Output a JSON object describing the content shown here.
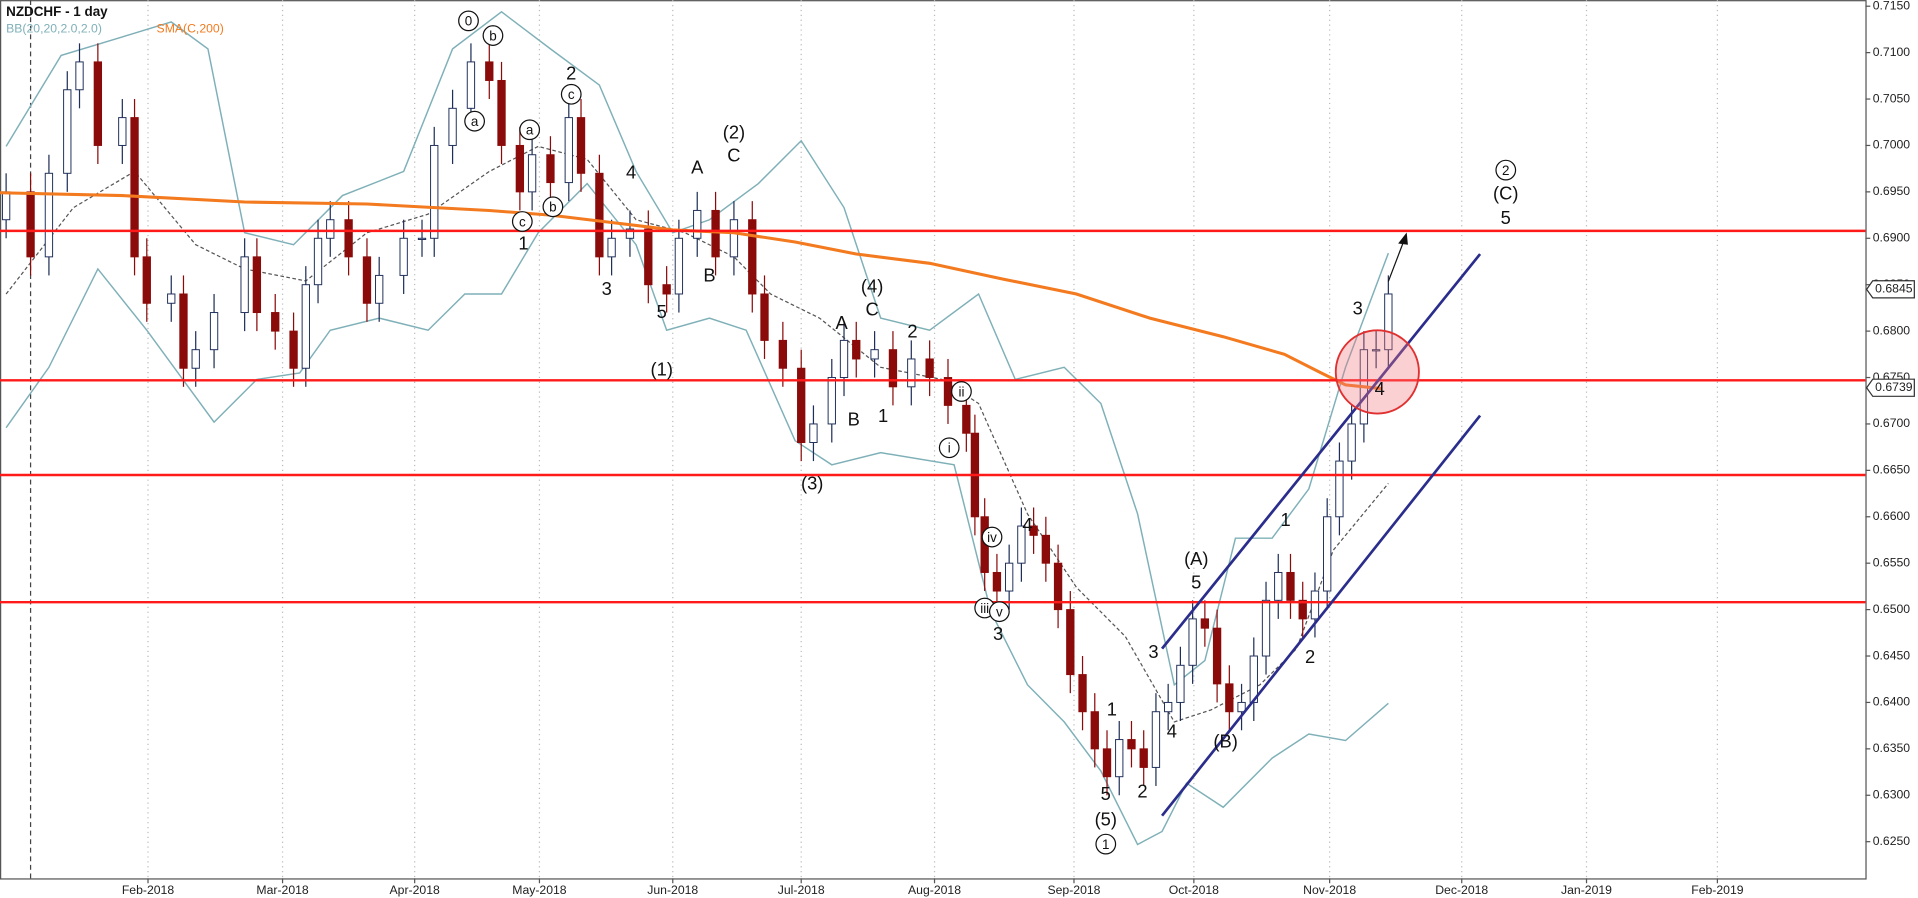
{
  "chart_data": {
    "type": "candlestick",
    "title": "NZDCHF - 1 day",
    "x": [
      1,
      5,
      8,
      11,
      13,
      16,
      20,
      22,
      24,
      28,
      30,
      32,
      35,
      40,
      42,
      45,
      48,
      50,
      52,
      54,
      57,
      60,
      62,
      66,
      69,
      71,
      74,
      77,
      80,
      82,
      85,
      87,
      90,
      93,
      95,
      98,
      100,
      103,
      106,
      109,
      111,
      114,
      117,
      120,
      123,
      125,
      128,
      131,
      133,
      136,
      138,
      140,
      143,
      146,
      149,
      152,
      155,
      158,
      159.4,
      161,
      163,
      165,
      167,
      169,
      171,
      173,
      175,
      177,
      179,
      181,
      183,
      185,
      187,
      189,
      191,
      193,
      195,
      197,
      199,
      201,
      203,
      205,
      207,
      209,
      211,
      213,
      215,
      217,
      219,
      221,
      223,
      225,
      227
    ],
    "open": [
      0.692,
      0.695,
      0.688,
      0.697,
      0.706,
      0.709,
      0.7,
      0.703,
      0.688,
      0.683,
      0.684,
      0.676,
      0.678,
      0.682,
      0.688,
      0.682,
      0.68,
      0.676,
      0.685,
      0.69,
      0.692,
      0.688,
      0.683,
      0.686,
      0.69,
      0.69,
      0.7,
      0.704,
      0.709,
      0.707,
      0.7,
      0.695,
      0.699,
      0.696,
      0.703,
      0.697,
      0.688,
      0.69,
      0.691,
      0.685,
      0.684,
      0.69,
      0.693,
      0.688,
      0.692,
      0.684,
      0.679,
      0.676,
      0.668,
      0.67,
      0.675,
      0.679,
      0.677,
      0.678,
      0.674,
      0.677,
      0.675,
      0.672,
      0.669,
      0.66,
      0.654,
      0.652,
      0.655,
      0.659,
      0.658,
      0.655,
      0.65,
      0.643,
      0.639,
      0.635,
      0.632,
      0.636,
      0.635,
      0.633,
      0.639,
      0.64,
      0.644,
      0.649,
      0.648,
      0.642,
      0.639,
      0.64,
      0.645,
      0.651,
      0.654,
      0.651,
      0.649,
      0.652,
      0.66,
      0.666,
      0.67,
      0.678,
      0.678
    ],
    "high": [
      0.697,
      0.697,
      0.699,
      0.708,
      0.711,
      0.711,
      0.705,
      0.705,
      0.69,
      0.686,
      0.686,
      0.68,
      0.684,
      0.69,
      0.69,
      0.684,
      0.682,
      0.687,
      0.692,
      0.694,
      0.694,
      0.69,
      0.688,
      0.692,
      0.692,
      0.702,
      0.706,
      0.711,
      0.711,
      0.709,
      0.702,
      0.701,
      0.701,
      0.705,
      0.705,
      0.699,
      0.692,
      0.693,
      0.693,
      0.687,
      0.692,
      0.695,
      0.695,
      0.694,
      0.694,
      0.686,
      0.681,
      0.678,
      0.672,
      0.677,
      0.681,
      0.681,
      0.68,
      0.68,
      0.679,
      0.679,
      0.677,
      0.674,
      0.671,
      0.662,
      0.656,
      0.657,
      0.661,
      0.661,
      0.66,
      0.657,
      0.652,
      0.645,
      0.641,
      0.637,
      0.638,
      0.638,
      0.637,
      0.641,
      0.642,
      0.646,
      0.651,
      0.651,
      0.65,
      0.644,
      0.642,
      0.647,
      0.653,
      0.656,
      0.656,
      0.653,
      0.654,
      0.662,
      0.668,
      0.672,
      0.68,
      0.68,
      0.686
    ],
    "low": [
      0.69,
      0.686,
      0.686,
      0.695,
      0.704,
      0.698,
      0.698,
      0.686,
      0.681,
      0.681,
      0.674,
      0.674,
      0.676,
      0.68,
      0.68,
      0.678,
      0.674,
      0.674,
      0.683,
      0.688,
      0.686,
      0.681,
      0.681,
      0.684,
      0.688,
      0.688,
      0.698,
      0.702,
      0.705,
      0.698,
      0.693,
      0.693,
      0.694,
      0.694,
      0.695,
      0.686,
      0.686,
      0.688,
      0.683,
      0.682,
      0.682,
      0.688,
      0.686,
      0.686,
      0.682,
      0.677,
      0.674,
      0.666,
      0.666,
      0.668,
      0.673,
      0.675,
      0.675,
      0.672,
      0.672,
      0.673,
      0.67,
      0.667,
      0.658,
      0.652,
      0.65,
      0.65,
      0.653,
      0.656,
      0.653,
      0.648,
      0.641,
      0.637,
      0.633,
      0.63,
      0.63,
      0.633,
      0.631,
      0.631,
      0.637,
      0.638,
      0.642,
      0.646,
      0.64,
      0.637,
      0.637,
      0.638,
      0.643,
      0.649,
      0.649,
      0.647,
      0.647,
      0.65,
      0.658,
      0.664,
      0.668,
      0.676,
      0.676
    ],
    "close": [
      0.695,
      0.688,
      0.697,
      0.706,
      0.709,
      0.7,
      0.703,
      0.688,
      0.683,
      0.684,
      0.676,
      0.678,
      0.682,
      0.688,
      0.682,
      0.68,
      0.676,
      0.685,
      0.69,
      0.692,
      0.688,
      0.683,
      0.686,
      0.69,
      0.69,
      0.7,
      0.704,
      0.709,
      0.707,
      0.7,
      0.695,
      0.699,
      0.696,
      0.703,
      0.697,
      0.688,
      0.69,
      0.691,
      0.685,
      0.684,
      0.69,
      0.693,
      0.688,
      0.692,
      0.684,
      0.679,
      0.676,
      0.668,
      0.67,
      0.675,
      0.679,
      0.677,
      0.678,
      0.674,
      0.677,
      0.675,
      0.672,
      0.669,
      0.66,
      0.654,
      0.652,
      0.655,
      0.659,
      0.658,
      0.655,
      0.65,
      0.643,
      0.639,
      0.635,
      0.632,
      0.636,
      0.635,
      0.633,
      0.639,
      0.64,
      0.644,
      0.649,
      0.648,
      0.642,
      0.639,
      0.64,
      0.645,
      0.651,
      0.654,
      0.651,
      0.649,
      0.652,
      0.66,
      0.666,
      0.67,
      0.678,
      0.678,
      0.684
    ],
    "up_color": "#ffffff",
    "down_color": "#8b0a0a",
    "outline_color": "#1f2f5a",
    "indicators": [
      {
        "name": "BB(20,20,2.0,2.0)",
        "color": "#7fb0b8",
        "upper": {
          "x": [
            1,
            10,
            20,
            28,
            34,
            40,
            48,
            56,
            66,
            74,
            82,
            90,
            98,
            104,
            110,
            116,
            124,
            131,
            138,
            144,
            152,
            160,
            166,
            174,
            180,
            186,
            192,
            197,
            202,
            208,
            214,
            220,
            227
          ],
          "values": [
            0.6999,
            0.7097,
            0.7117,
            0.7133,
            0.7104,
            0.6906,
            0.6893,
            0.6946,
            0.6972,
            0.7104,
            0.7144,
            0.7104,
            0.7065,
            0.6972,
            0.6906,
            0.692,
            0.6959,
            0.7005,
            0.6933,
            0.6814,
            0.6801,
            0.684,
            0.6748,
            0.6761,
            0.6722,
            0.6603,
            0.6419,
            0.6445,
            0.6577,
            0.6577,
            0.663,
            0.6761,
            0.6884
          ]
        },
        "middle": {
          "x": [
            1,
            12,
            22,
            32,
            40,
            50,
            60,
            70,
            80,
            88,
            96,
            104,
            112,
            120,
            126,
            134,
            144,
            154,
            160,
            168,
            176,
            184,
            192,
            198,
            206,
            212,
            218,
            227
          ],
          "values": [
            0.684,
            0.6933,
            0.6972,
            0.6893,
            0.6867,
            0.6854,
            0.6906,
            0.6926,
            0.6972,
            0.6999,
            0.6985,
            0.692,
            0.6906,
            0.688,
            0.684,
            0.6814,
            0.6761,
            0.6748,
            0.6722,
            0.6603,
            0.6524,
            0.6471,
            0.6379,
            0.6392,
            0.6419,
            0.6458,
            0.6564,
            0.6636
          ]
        },
        "lower": {
          "x": [
            1,
            8,
            16,
            24,
            35,
            42,
            49,
            54,
            62,
            70,
            76,
            82,
            88,
            96,
            104,
            109,
            116,
            122,
            130,
            136,
            144,
            156,
            162,
            168,
            174,
            180,
            186,
            190,
            194,
            200,
            208,
            214,
            220,
            227
          ],
          "values": [
            0.6696,
            0.6761,
            0.6867,
            0.6801,
            0.6702,
            0.6748,
            0.6755,
            0.6801,
            0.6814,
            0.6801,
            0.684,
            0.684,
            0.6906,
            0.6959,
            0.6893,
            0.6801,
            0.6814,
            0.6801,
            0.6682,
            0.6656,
            0.6669,
            0.6656,
            0.6498,
            0.6419,
            0.6379,
            0.6326,
            0.6247,
            0.6261,
            0.6313,
            0.6287,
            0.634,
            0.6366,
            0.6359,
            0.6399
          ]
        }
      },
      {
        "name": "SMA(C,200)",
        "color": "#f37a1f",
        "x": [
          0,
          20,
          40,
          60,
          80,
          90,
          100,
          110,
          120,
          130,
          140,
          152,
          164,
          176,
          188,
          200,
          210,
          216,
          220,
          226
        ],
        "values": [
          0.6949,
          0.6946,
          0.6939,
          0.6937,
          0.693,
          0.6925,
          0.6917,
          0.6909,
          0.6906,
          0.6896,
          0.6883,
          0.6873,
          0.6856,
          0.684,
          0.6814,
          0.6794,
          0.6775,
          0.6755,
          0.6742,
          0.6738
        ]
      }
    ],
    "levels": [
      0.6908,
      0.6747,
      0.6645,
      0.6508
    ],
    "level_color": "#ff1a1a",
    "channels": [
      {
        "x": [
          190,
          242
        ],
        "y": [
          0.6458,
          0.6883
        ]
      },
      {
        "x": [
          190,
          242
        ],
        "y": [
          0.6278,
          0.6709
        ]
      }
    ],
    "channel_color": "#2b2d8c",
    "price_markers": [
      0.6845,
      0.6739
    ],
    "annotations": [
      "0",
      "b",
      "a",
      "2",
      "c",
      "a",
      "c",
      "b",
      "1",
      "4",
      "3",
      "A",
      "(2)",
      "C",
      "B",
      "5",
      "(1)",
      "(4)",
      "C",
      "A",
      "2",
      "B",
      "1",
      "ii",
      "i",
      "(3)",
      "4",
      "iv",
      "iii",
      "v",
      "3",
      "(A)",
      "5",
      "3",
      "1",
      "4",
      "(B)",
      "1",
      "2",
      "3",
      "4",
      "5",
      "(5)",
      "1",
      "2",
      "2",
      "(C)",
      "5"
    ],
    "xlim": [
      0,
      305
    ],
    "ylim": [
      0.62105,
      0.71566
    ],
    "xticks": [
      {
        "value": 24.2,
        "label": "Feb-2018"
      },
      {
        "value": 46.2,
        "label": "Mar-2018"
      },
      {
        "value": 67.8,
        "label": "Apr-2018"
      },
      {
        "value": 88.2,
        "label": "May-2018"
      },
      {
        "value": 110,
        "label": "Jun-2018"
      },
      {
        "value": 131,
        "label": "Jul-2018"
      },
      {
        "value": 152.8,
        "label": "Aug-2018"
      },
      {
        "value": 175.6,
        "label": "Sep-2018"
      },
      {
        "value": 195.2,
        "label": "Oct-2018"
      },
      {
        "value": 217.4,
        "label": "Nov-2018"
      },
      {
        "value": 239,
        "label": "Dec-2018"
      },
      {
        "value": 259.4,
        "label": "Jan-2019"
      },
      {
        "value": 280.8,
        "label": "Feb-2019"
      }
    ],
    "yticks": [
      {
        "value": 0.625,
        "label": "0.6250"
      },
      {
        "value": 0.63,
        "label": "0.6300"
      },
      {
        "value": 0.635,
        "label": "0.6350"
      },
      {
        "value": 0.64,
        "label": "0.6400"
      },
      {
        "value": 0.645,
        "label": "0.6450"
      },
      {
        "value": 0.65,
        "label": "0.6500"
      },
      {
        "value": 0.655,
        "label": "0.6550"
      },
      {
        "value": 0.66,
        "label": "0.6600"
      },
      {
        "value": 0.665,
        "label": "0.6650"
      },
      {
        "value": 0.67,
        "label": "0.6700"
      },
      {
        "value": 0.675,
        "label": "0.6750"
      },
      {
        "value": 0.68,
        "label": "0.6800"
      },
      {
        "value": 0.685,
        "label": "0.6850"
      },
      {
        "value": 0.69,
        "label": "0.6900"
      },
      {
        "value": 0.695,
        "label": "0.6950"
      },
      {
        "value": 0.7,
        "label": "0.7000"
      },
      {
        "value": 0.705,
        "label": "0.7050"
      },
      {
        "value": 0.71,
        "label": "0.7100"
      },
      {
        "value": 0.715,
        "label": "0.7150"
      }
    ],
    "grid": true
  }
}
